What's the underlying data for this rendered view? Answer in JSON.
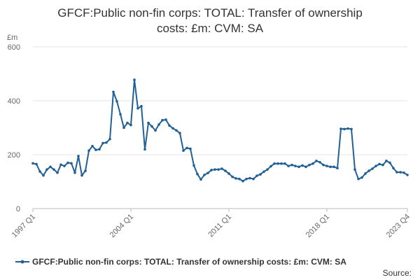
{
  "chart_data": {
    "type": "line",
    "title_lines": [
      "GFCF:Public non-fin corps: TOTAL: Transfer of ownership",
      "costs: £m: CVM: SA"
    ],
    "ylabel": "£m",
    "ylim": [
      0,
      600
    ],
    "yticks": [
      0,
      200,
      400,
      600
    ],
    "xticks": [
      "1997 Q1",
      "2004 Q1",
      "2011 Q1",
      "2018 Q1",
      "2023 Q4"
    ],
    "grid": true,
    "legend_position": "bottom",
    "source_label": "Source:",
    "series": [
      {
        "name": "GFCF:Public non-fin corps: TOTAL: Transfer of ownership costs: £m: CVM: SA",
        "color": "#206095",
        "x": [
          "1997 Q1",
          "1997 Q2",
          "1997 Q3",
          "1997 Q4",
          "1998 Q1",
          "1998 Q2",
          "1998 Q3",
          "1998 Q4",
          "1999 Q1",
          "1999 Q2",
          "1999 Q3",
          "1999 Q4",
          "2000 Q1",
          "2000 Q2",
          "2000 Q3",
          "2000 Q4",
          "2001 Q1",
          "2001 Q2",
          "2001 Q3",
          "2001 Q4",
          "2002 Q1",
          "2002 Q2",
          "2002 Q3",
          "2002 Q4",
          "2003 Q1",
          "2003 Q2",
          "2003 Q3",
          "2003 Q4",
          "2004 Q1",
          "2004 Q2",
          "2004 Q3",
          "2004 Q4",
          "2005 Q1",
          "2005 Q2",
          "2005 Q3",
          "2005 Q4",
          "2006 Q1",
          "2006 Q2",
          "2006 Q3",
          "2006 Q4",
          "2007 Q1",
          "2007 Q2",
          "2007 Q3",
          "2007 Q4",
          "2008 Q1",
          "2008 Q2",
          "2008 Q3",
          "2008 Q4",
          "2009 Q1",
          "2009 Q2",
          "2009 Q3",
          "2009 Q4",
          "2010 Q1",
          "2010 Q2",
          "2010 Q3",
          "2010 Q4",
          "2011 Q1",
          "2011 Q2",
          "2011 Q3",
          "2011 Q4",
          "2012 Q1",
          "2012 Q2",
          "2012 Q3",
          "2012 Q4",
          "2013 Q1",
          "2013 Q2",
          "2013 Q3",
          "2013 Q4",
          "2014 Q1",
          "2014 Q2",
          "2014 Q3",
          "2014 Q4",
          "2015 Q1",
          "2015 Q2",
          "2015 Q3",
          "2015 Q4",
          "2016 Q1",
          "2016 Q2",
          "2016 Q3",
          "2016 Q4",
          "2017 Q1",
          "2017 Q2",
          "2017 Q3",
          "2017 Q4",
          "2018 Q1",
          "2018 Q2",
          "2018 Q3",
          "2018 Q4",
          "2019 Q1",
          "2019 Q2",
          "2019 Q3",
          "2019 Q4",
          "2020 Q1",
          "2020 Q2",
          "2020 Q3",
          "2020 Q4",
          "2021 Q1",
          "2021 Q2",
          "2021 Q3",
          "2021 Q4",
          "2022 Q1",
          "2022 Q2",
          "2022 Q3",
          "2022 Q4",
          "2023 Q1",
          "2023 Q2",
          "2023 Q3",
          "2023 Q4"
        ],
        "values": [
          168,
          165,
          138,
          123,
          145,
          155,
          145,
          133,
          163,
          158,
          170,
          168,
          133,
          195,
          123,
          140,
          215,
          232,
          218,
          220,
          243,
          245,
          258,
          433,
          398,
          350,
          300,
          318,
          310,
          478,
          372,
          380,
          220,
          318,
          305,
          290,
          312,
          328,
          330,
          308,
          298,
          290,
          280,
          215,
          225,
          222,
          160,
          128,
          108,
          125,
          132,
          143,
          145,
          145,
          148,
          140,
          130,
          118,
          112,
          110,
          102,
          110,
          113,
          110,
          122,
          127,
          137,
          145,
          157,
          167,
          167,
          167,
          167,
          158,
          162,
          158,
          155,
          160,
          155,
          162,
          167,
          177,
          172,
          162,
          158,
          155,
          155,
          150,
          296,
          295,
          297,
          295,
          145,
          110,
          115,
          130,
          140,
          148,
          158,
          165,
          162,
          177,
          170,
          150,
          135,
          135,
          133,
          125
        ]
      }
    ]
  }
}
